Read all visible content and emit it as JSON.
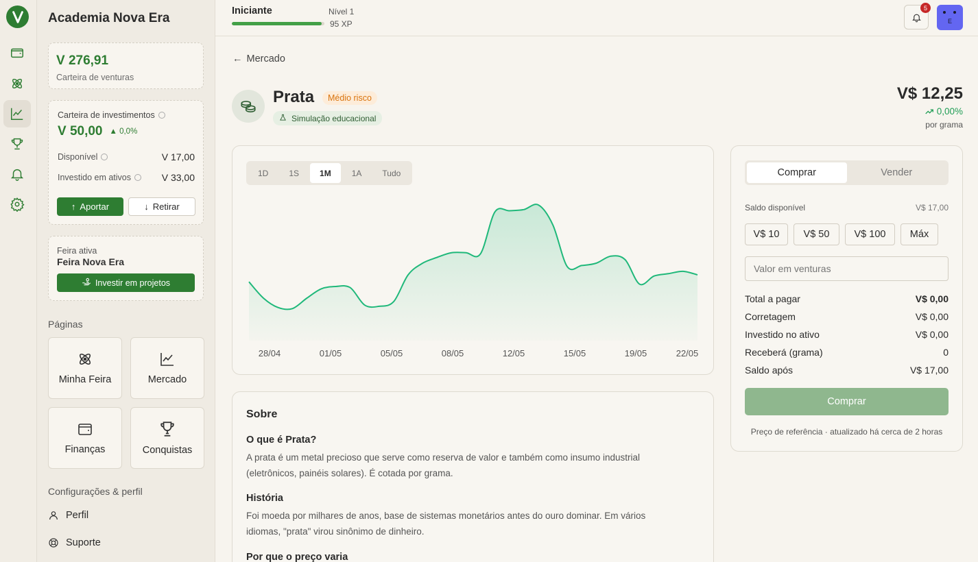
{
  "sidebar": {
    "brand": "Academia Nova Era",
    "wallet": {
      "amount": "V 276,91",
      "label": "Carteira de venturas"
    },
    "invest": {
      "title": "Carteira de investimentos",
      "amount": "V 50,00",
      "change": "0,0%",
      "available_label": "Disponível",
      "available_value": "V 17,00",
      "invested_label": "Investido em ativos",
      "invested_value": "V 33,00",
      "deposit_button": "Aportar",
      "withdraw_button": "Retirar"
    },
    "fair": {
      "caption": "Feira ativa",
      "name": "Feira Nova Era",
      "button": "Investir em projetos"
    },
    "pages_title": "Páginas",
    "pages": [
      {
        "label": "Minha Feira",
        "icon": "atom-icon"
      },
      {
        "label": "Mercado",
        "icon": "chart-line-icon"
      },
      {
        "label": "Finanças",
        "icon": "wallet-icon"
      },
      {
        "label": "Conquistas",
        "icon": "trophy-icon"
      }
    ],
    "settings_title": "Configurações & perfil",
    "settings": [
      {
        "label": "Perfil",
        "icon": "user-icon"
      },
      {
        "label": "Suporte",
        "icon": "lifebuoy-icon"
      }
    ]
  },
  "rail": {
    "icons": [
      "wallet-icon",
      "atom-icon",
      "chart-line-icon",
      "trophy-icon",
      "bell-icon",
      "gear-icon"
    ],
    "active_index": 2
  },
  "topbar": {
    "level_name": "Iniciante",
    "level": "Nível 1",
    "xp": "95 XP",
    "xp_progress": 0.97,
    "notification_count": "5",
    "avatar_letter": "E"
  },
  "asset": {
    "back_label": "Mercado",
    "name": "Prata",
    "risk_badge": "Médio risco",
    "sim_badge": "Simulação educacional",
    "price": "V$ 12,25",
    "change": "0,00%",
    "unit": "por grama"
  },
  "chart_data": {
    "type": "area",
    "range_tabs": [
      "1D",
      "1S",
      "1M",
      "1A",
      "Tudo"
    ],
    "active_range": "1M",
    "x_tick_labels": [
      "28/04",
      "01/05",
      "05/05",
      "08/05",
      "12/05",
      "15/05",
      "19/05",
      "22/05"
    ],
    "values": [
      0.34,
      0.2,
      0.12,
      0.11,
      0.2,
      0.28,
      0.3,
      0.29,
      0.14,
      0.13,
      0.17,
      0.4,
      0.5,
      0.55,
      0.59,
      0.59,
      0.58,
      0.94,
      0.95,
      0.96,
      1.0,
      0.83,
      0.47,
      0.48,
      0.5,
      0.56,
      0.53,
      0.32,
      0.39,
      0.41,
      0.43,
      0.4
    ],
    "ylim": [
      0,
      1
    ],
    "grid": false,
    "legend": "none",
    "line_color": "#1fb87a"
  },
  "trade": {
    "tab_buy": "Comprar",
    "tab_sell": "Vender",
    "balance_label": "Saldo disponível",
    "balance_value": "V$ 17,00",
    "quick": [
      "V$ 10",
      "V$ 50",
      "V$ 100",
      "Máx"
    ],
    "input_placeholder": "Valor em venturas",
    "rows": [
      {
        "label": "Total a pagar",
        "value": "V$ 0,00",
        "bold": true
      },
      {
        "label": "Corretagem",
        "value": "V$ 0,00"
      },
      {
        "label": "Investido no ativo",
        "value": "V$ 0,00"
      },
      {
        "label": "Receberá (grama)",
        "value": "0"
      },
      {
        "label": "Saldo após",
        "value": "V$ 17,00"
      }
    ],
    "submit": "Comprar",
    "footnote": "Preço de referência · atualizado há cerca de 2 horas"
  },
  "about": {
    "title": "Sobre",
    "sections": [
      {
        "heading": "O que é Prata?",
        "body": [
          "A prata é um metal precioso que serve como reserva de valor e também como insumo industrial",
          "(eletrônicos, painéis solares). É cotada por grama."
        ]
      },
      {
        "heading": "História",
        "body": [
          "Foi moeda por milhares de anos, base de sistemas monetários antes do ouro dominar. Em vários",
          "idiomas, \"prata\" virou sinônimo de dinheiro."
        ]
      },
      {
        "heading": "Por que o preço varia",
        "body": []
      }
    ]
  },
  "colors": {
    "brand": "#2e7d32",
    "accent": "#1fb87a",
    "risk": "#d9730d",
    "avatar": "#6366f1"
  }
}
